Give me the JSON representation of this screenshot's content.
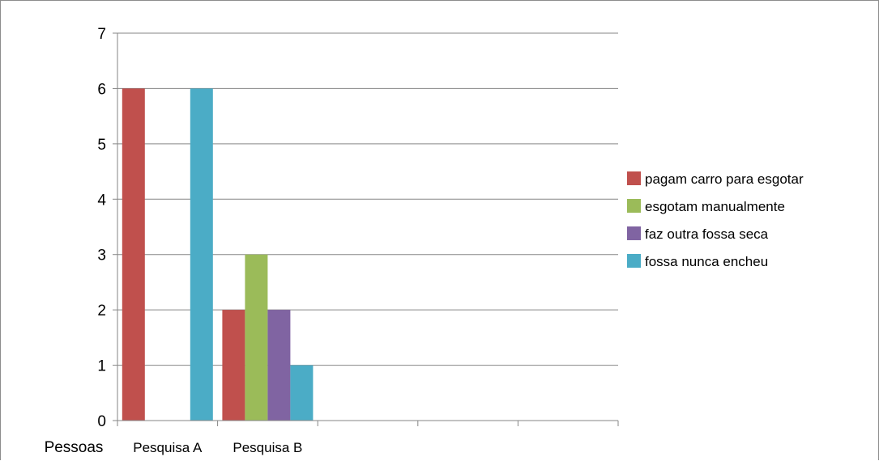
{
  "chart_data": {
    "type": "bar",
    "categories": [
      "Pesquisa A",
      "Pesquisa B",
      "",
      "",
      ""
    ],
    "series": [
      {
        "name": "pagam carro para esgotar",
        "color": "#C0504D",
        "values": [
          6,
          2,
          null,
          null,
          null
        ]
      },
      {
        "name": "esgotam manualmente",
        "color": "#9BBB59",
        "values": [
          null,
          3,
          null,
          null,
          null
        ]
      },
      {
        "name": "faz outra fossa seca",
        "color": "#8064A2",
        "values": [
          null,
          2,
          null,
          null,
          null
        ]
      },
      {
        "name": "fossa nunca encheu",
        "color": "#4BACC6",
        "values": [
          6,
          1,
          null,
          null,
          null
        ]
      }
    ],
    "ylabel": "Pessoas",
    "ylim": [
      0,
      7
    ],
    "yticks": [
      "0",
      "1",
      "2",
      "3",
      "4",
      "5",
      "6",
      "7"
    ],
    "grid": true,
    "legend": "right"
  }
}
